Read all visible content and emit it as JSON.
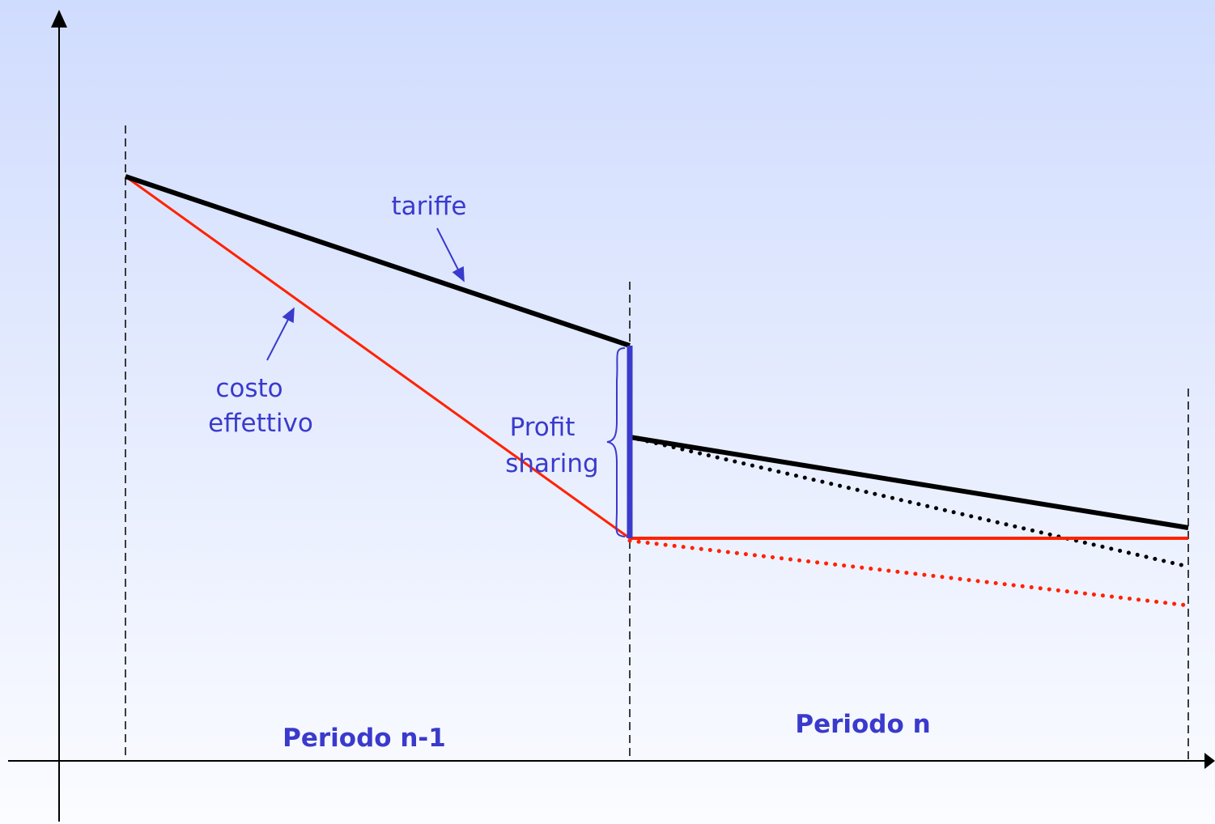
{
  "labels": {
    "tariffe": "tariffe",
    "costo": [
      "costo",
      "effettivo"
    ],
    "profit": [
      "Profit",
      "sharing"
    ],
    "period_prev": "Periodo n-1",
    "period": "Periodo n"
  }
}
